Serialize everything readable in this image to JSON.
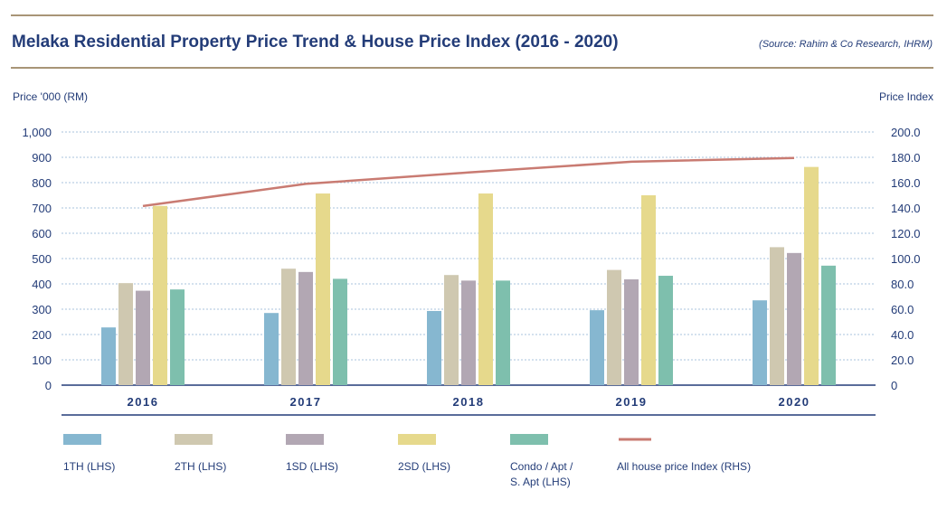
{
  "header": {
    "title": "Melaka Residential Property Price Trend & House Price Index (2016 - 2020)",
    "source": "(Source: Rahim & Co Research, IHRM)"
  },
  "chart_data": {
    "type": "bar",
    "categories": [
      "2016",
      "2017",
      "2018",
      "2019",
      "2020"
    ],
    "ylabel": "Price '000 (RM)",
    "ylabel_right": "Price Index",
    "ylim": [
      0,
      1000
    ],
    "ylim_right": [
      0,
      200
    ],
    "yticks": [
      "0",
      "100",
      "200",
      "300",
      "400",
      "500",
      "600",
      "700",
      "800",
      "900",
      "1,000"
    ],
    "yticks_right": [
      "0",
      "20.0",
      "40.0",
      "60.0",
      "80.0",
      "100.0",
      "120.0",
      "140.0",
      "160.0",
      "180.0",
      "200.0"
    ],
    "grid": true,
    "legend_position": "bottom",
    "series": [
      {
        "name": "1TH (LHS)",
        "color": "#86b7d0",
        "values": [
          228,
          285,
          293,
          296,
          335
        ]
      },
      {
        "name": "2TH (LHS)",
        "color": "#cfc8b0",
        "values": [
          403,
          460,
          435,
          455,
          545
        ]
      },
      {
        "name": "1SD (LHS)",
        "color": "#b2a7b3",
        "values": [
          373,
          447,
          413,
          418,
          522
        ]
      },
      {
        "name": "2SD (LHS)",
        "color": "#e6d98c",
        "values": [
          708,
          757,
          757,
          750,
          862
        ]
      },
      {
        "name": "Condo / Apt / S. Apt (LHS)",
        "color": "#7ebfad",
        "values": [
          378,
          420,
          413,
          432,
          472
        ]
      }
    ],
    "line_series": {
      "name": "All house price Index (RHS)",
      "color": "#c97b72",
      "axis": "right",
      "values": [
        141.5,
        159.0,
        168.0,
        176.5,
        179.5
      ]
    }
  },
  "legend": {
    "items": [
      {
        "label": "1TH (LHS)",
        "color": "#86b7d0",
        "kind": "bar"
      },
      {
        "label": "2TH (LHS)",
        "color": "#cfc8b0",
        "kind": "bar"
      },
      {
        "label": "1SD (LHS)",
        "color": "#b2a7b3",
        "kind": "bar"
      },
      {
        "label": "2SD (LHS)",
        "color": "#e6d98c",
        "kind": "bar"
      },
      {
        "label_line1": "Condo / Apt /",
        "label_line2": "S. Apt (LHS)",
        "color": "#7ebfad",
        "kind": "bar"
      },
      {
        "label": "All house price Index (RHS)",
        "color": "#c97b72",
        "kind": "line"
      }
    ]
  }
}
